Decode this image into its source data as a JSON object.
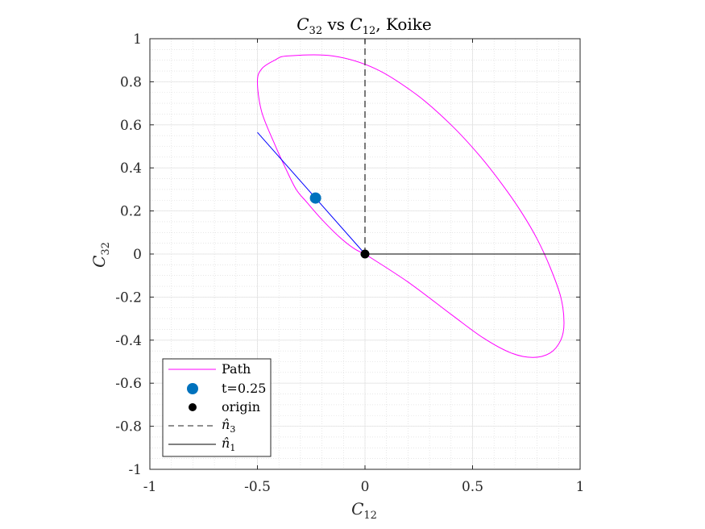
{
  "chart_data": {
    "type": "line",
    "title": "C₃₂ vs C₁₂, Koike",
    "title_parts": {
      "lhs": "C",
      "lhs_sub": "32",
      "mid": " vs ",
      "rhs": "C",
      "rhs_sub": "12",
      "tail": ", Koike"
    },
    "xlabel": "C",
    "xlabel_sub": "12",
    "ylabel": "C",
    "ylabel_sub": "32",
    "xlim": [
      -1,
      1
    ],
    "ylim": [
      -1,
      1
    ],
    "xticks": [
      -1,
      -0.5,
      0,
      0.5,
      1
    ],
    "xtick_labels": [
      "-1",
      "-0.5",
      "0",
      "0.5",
      "1"
    ],
    "yticks": [
      -1,
      -0.8,
      -0.6,
      -0.4,
      -0.2,
      0,
      0.2,
      0.4,
      0.6,
      0.8,
      1
    ],
    "ytick_labels": [
      "-1",
      "-0.8",
      "-0.6",
      "-0.4",
      "-0.2",
      "0",
      "0.2",
      "0.4",
      "0.6",
      "0.8",
      "1"
    ],
    "grid": "major and minor",
    "legend_position": "bottom-left",
    "series": [
      {
        "name": "Path",
        "kind": "line",
        "color": "#ff00ff",
        "x": [
          0.0,
          0.2,
          0.4,
          0.55,
          0.68,
          0.78,
          0.86,
          0.91,
          0.925,
          0.91,
          0.86,
          0.8,
          0.73,
          0.64,
          0.53,
          0.4,
          0.24,
          0.05,
          -0.15,
          -0.36,
          -0.42,
          -0.48,
          -0.5,
          -0.48,
          -0.42,
          -0.37,
          -0.32,
          -0.27,
          -0.2,
          -0.12,
          -0.05,
          0.0
        ],
        "y": [
          0.0,
          -0.13,
          -0.28,
          -0.39,
          -0.46,
          -0.48,
          -0.46,
          -0.4,
          -0.32,
          -0.2,
          -0.06,
          0.07,
          0.19,
          0.32,
          0.46,
          0.6,
          0.74,
          0.86,
          0.92,
          0.92,
          0.9,
          0.86,
          0.8,
          0.66,
          0.51,
          0.4,
          0.3,
          0.24,
          0.16,
          0.08,
          0.025,
          0.0
        ]
      },
      {
        "name": "",
        "kind": "line",
        "color": "#0000ff",
        "x": [
          -0.5,
          0.0
        ],
        "y": [
          0.565,
          0.0
        ]
      },
      {
        "name": "t=0.25",
        "kind": "marker",
        "color": "#0072bd",
        "x": [
          -0.23
        ],
        "y": [
          0.26
        ]
      },
      {
        "name": "origin",
        "kind": "marker",
        "color": "#000000",
        "x": [
          0
        ],
        "y": [
          0
        ]
      },
      {
        "name": "n̂₃",
        "name_base": "n̂",
        "name_sub": "3",
        "kind": "dashed-line",
        "color": "#4d4d4d",
        "x": [
          0,
          0
        ],
        "y": [
          0,
          1
        ]
      },
      {
        "name": "n̂₁",
        "name_base": "n̂",
        "name_sub": "1",
        "kind": "line",
        "color": "#000000",
        "x": [
          0,
          1
        ],
        "y": [
          0,
          0
        ]
      }
    ]
  }
}
